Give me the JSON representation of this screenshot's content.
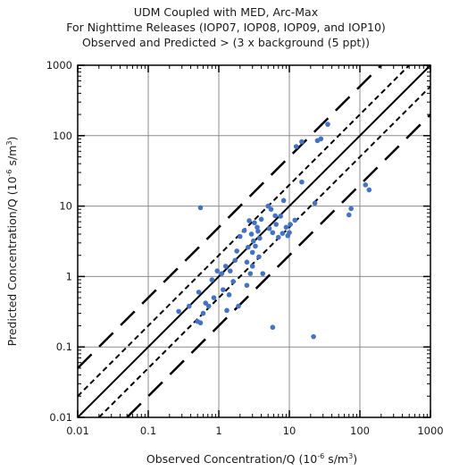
{
  "chart_data": {
    "type": "scatter",
    "title": [
      "UDM Coupled with MED, Arc-Max",
      "For Nighttime Releases (IOP07, IOP08, IOP09, and IOP10)",
      "Observed and Predicted > (3 x background (5 ppt))"
    ],
    "xlabel": {
      "main": "Observed Concentration/Q (10",
      "sup": "-6",
      "tail": " s/m",
      "sup2": "3",
      "end": ")"
    },
    "ylabel": {
      "main": "Predicted Concentration/Q (10",
      "sup": "-6",
      "tail": " s/m",
      "sup2": "3",
      "end": ")"
    },
    "xscale": "log",
    "yscale": "log",
    "xlim": [
      0.01,
      1000
    ],
    "ylim": [
      0.01,
      1000
    ],
    "xticks": [
      "0.01",
      "0.1",
      "1",
      "10",
      "100",
      "1000"
    ],
    "yticks": [
      "0.01",
      "0.1",
      "1",
      "10",
      "100",
      "1000"
    ],
    "grid": true,
    "reference_lines": [
      {
        "factor": 1,
        "style": "solid"
      },
      {
        "factor": 2,
        "style": "short-dash"
      },
      {
        "factor": 0.5,
        "style": "short-dash"
      },
      {
        "factor": 5,
        "style": "long-dash"
      },
      {
        "factor": 0.2,
        "style": "long-dash"
      }
    ],
    "point_color": "#4472c4",
    "points": [
      [
        0.27,
        0.32
      ],
      [
        0.38,
        0.38
      ],
      [
        0.5,
        0.23
      ],
      [
        0.55,
        0.22
      ],
      [
        0.55,
        9.5
      ],
      [
        0.52,
        0.6
      ],
      [
        0.6,
        0.3
      ],
      [
        0.65,
        0.42
      ],
      [
        0.72,
        0.38
      ],
      [
        0.8,
        0.9
      ],
      [
        0.85,
        0.5
      ],
      [
        0.95,
        1.2
      ],
      [
        1.1,
        1.1
      ],
      [
        1.15,
        0.65
      ],
      [
        1.25,
        1.4
      ],
      [
        1.3,
        0.33
      ],
      [
        1.4,
        0.55
      ],
      [
        1.45,
        1.2
      ],
      [
        1.6,
        0.85
      ],
      [
        1.7,
        1.7
      ],
      [
        1.8,
        2.3
      ],
      [
        1.9,
        0.38
      ],
      [
        2.0,
        3.7
      ],
      [
        2.3,
        4.5
      ],
      [
        2.5,
        1.6
      ],
      [
        2.5,
        0.75
      ],
      [
        2.6,
        2.6
      ],
      [
        2.7,
        6.2
      ],
      [
        2.8,
        1.1
      ],
      [
        2.9,
        4.0
      ],
      [
        3.0,
        2.2
      ],
      [
        3.0,
        1.4
      ],
      [
        3.1,
        3.2
      ],
      [
        3.2,
        5.8
      ],
      [
        3.3,
        2.7
      ],
      [
        3.5,
        5.0
      ],
      [
        3.6,
        4.4
      ],
      [
        3.7,
        1.9
      ],
      [
        3.8,
        3.5
      ],
      [
        4.0,
        6.5
      ],
      [
        4.2,
        1.1
      ],
      [
        5.0,
        10.0
      ],
      [
        5.2,
        4.8
      ],
      [
        5.5,
        9.0
      ],
      [
        5.8,
        4.2
      ],
      [
        5.8,
        0.19
      ],
      [
        6.3,
        7.3
      ],
      [
        6.5,
        5.5
      ],
      [
        7.0,
        3.6
      ],
      [
        7.5,
        7.2
      ],
      [
        8.0,
        4.1
      ],
      [
        8.3,
        12.0
      ],
      [
        9.0,
        5.0
      ],
      [
        9.5,
        3.8
      ],
      [
        10.0,
        4.2
      ],
      [
        10.3,
        5.5
      ],
      [
        12.0,
        6.3
      ],
      [
        12.5,
        70.0
      ],
      [
        15.0,
        22.0
      ],
      [
        15.0,
        82.0
      ],
      [
        22.0,
        0.14
      ],
      [
        23.0,
        11.0
      ],
      [
        25.0,
        85.0
      ],
      [
        28.0,
        90.0
      ],
      [
        35.0,
        145.0
      ],
      [
        70.0,
        7.5
      ],
      [
        75.0,
        9.2
      ],
      [
        120.0,
        20.0
      ],
      [
        135.0,
        17.0
      ]
    ]
  }
}
